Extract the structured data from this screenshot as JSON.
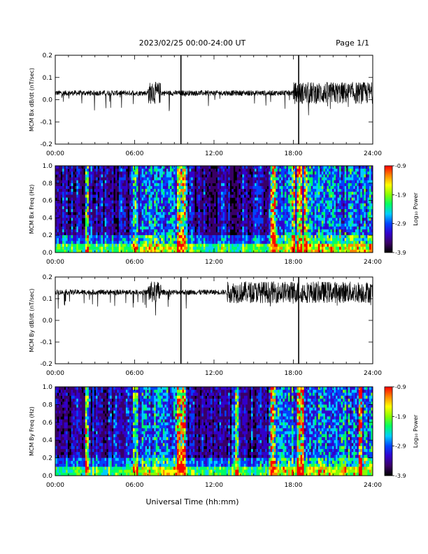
{
  "header": {
    "title": "2023/02/25  00:00-24:00 UT",
    "page": "Page 1/1"
  },
  "footer": {
    "xlabel": "Universal Time (hh:mm)"
  },
  "time_ticks": [
    "00:00",
    "06:00",
    "12:00",
    "18:00",
    "24:00"
  ],
  "colorbar": {
    "label": "Log₁₀ Power",
    "ticks": [
      "-0.9",
      "-1.9",
      "-2.9",
      "-3.9"
    ],
    "range": [
      -3.9,
      -0.9
    ],
    "colormap": [
      "#000000",
      "#3a0066",
      "#3300cc",
      "#0044ff",
      "#00ccff",
      "#00ff66",
      "#88ff00",
      "#ffff00",
      "#ff8800",
      "#ff0000"
    ]
  },
  "chart_data": [
    {
      "type": "line",
      "ylabel": "MCM Bx dB/dt (nT/sec)",
      "xlim": [
        0,
        24
      ],
      "ylim": [
        -0.2,
        0.2
      ],
      "yticks": [
        "0.2",
        "0.1",
        "0.0",
        "-0.1",
        "-0.2"
      ],
      "baseline": 0.03,
      "spikes_hours": [
        9.5,
        18.4
      ],
      "activity_bursts_hours": [
        [
          7.0,
          8.0
        ],
        [
          18.0,
          24.0
        ]
      ]
    },
    {
      "type": "heatmap",
      "ylabel": "MCM Bx Freq (Hz)",
      "xlim": [
        0,
        24
      ],
      "ylim": [
        0.0,
        1.0
      ],
      "yticks": [
        "1.0",
        "0.8",
        "0.6",
        "0.4",
        "0.2",
        "0.0"
      ],
      "bright_columns_hours": [
        2.3,
        6.0,
        9.3,
        9.6,
        16.4,
        17.9,
        18.4,
        18.9
      ]
    },
    {
      "type": "line",
      "ylabel": "MCM By dB/dt (nT/sec)",
      "xlim": [
        0,
        24
      ],
      "ylim": [
        -0.2,
        0.2
      ],
      "yticks": [
        "0.2",
        "0.1",
        "0.0",
        "-0.1",
        "-0.2"
      ],
      "baseline": 0.13,
      "spikes_hours": [
        9.5,
        18.4
      ],
      "activity_bursts_hours": [
        [
          7.0,
          8.0
        ],
        [
          13.0,
          24.0
        ]
      ]
    },
    {
      "type": "heatmap",
      "ylabel": "MCM By Freq (Hz)",
      "xlim": [
        0,
        24
      ],
      "ylim": [
        0.0,
        1.0
      ],
      "yticks": [
        "1.0",
        "0.8",
        "0.6",
        "0.4",
        "0.2",
        "0.0"
      ],
      "bright_columns_hours": [
        2.3,
        6.0,
        9.3,
        9.6,
        13.7,
        16.4,
        18.3,
        18.6,
        23.0
      ]
    }
  ]
}
